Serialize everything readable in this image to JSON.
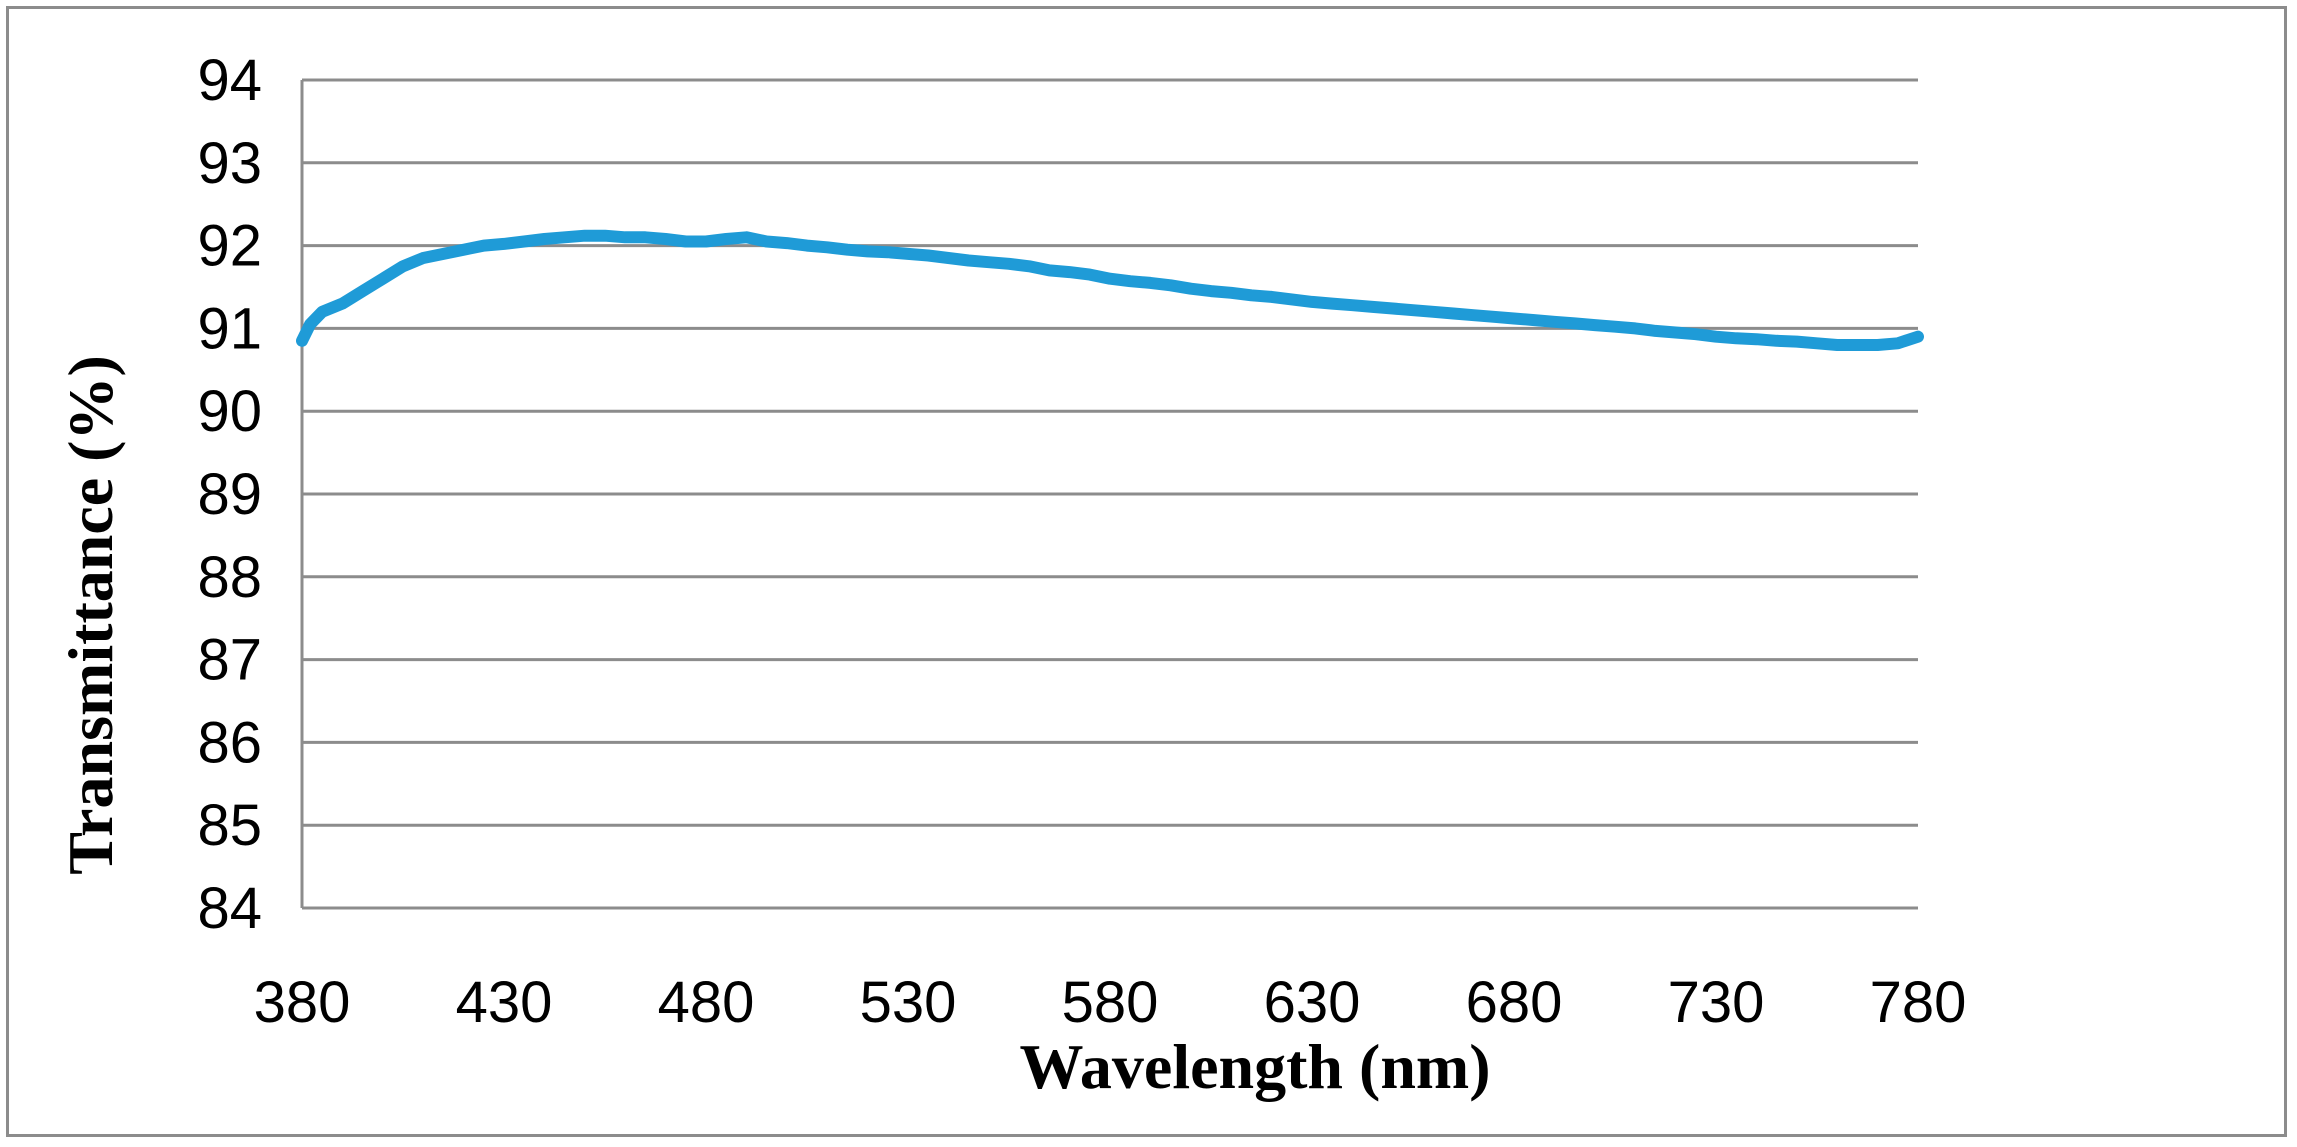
{
  "chart_data": {
    "type": "line",
    "title": "",
    "xlabel": "Wavelength (nm)",
    "ylabel": "Transmittance (%)",
    "xlim": [
      380,
      780
    ],
    "ylim": [
      84,
      94
    ],
    "x_ticks": [
      380,
      430,
      480,
      530,
      580,
      630,
      680,
      730,
      780
    ],
    "y_ticks": [
      84,
      85,
      86,
      87,
      88,
      89,
      90,
      91,
      92,
      93,
      94
    ],
    "grid": true,
    "legend": "none",
    "series": [
      {
        "name": "Transmittance",
        "color": "#1f9bd7",
        "x": [
          380,
          382,
          385,
          390,
          395,
          400,
          405,
          410,
          415,
          420,
          425,
          430,
          435,
          440,
          445,
          450,
          455,
          460,
          465,
          470,
          475,
          480,
          485,
          490,
          495,
          500,
          505,
          510,
          515,
          520,
          525,
          530,
          535,
          540,
          545,
          550,
          555,
          560,
          565,
          570,
          575,
          580,
          585,
          590,
          595,
          600,
          605,
          610,
          615,
          620,
          625,
          630,
          635,
          640,
          645,
          650,
          655,
          660,
          665,
          670,
          675,
          680,
          685,
          690,
          695,
          700,
          705,
          710,
          715,
          720,
          725,
          730,
          735,
          740,
          745,
          750,
          755,
          760,
          765,
          770,
          775,
          780
        ],
        "y": [
          90.85,
          91.05,
          91.2,
          91.3,
          91.45,
          91.6,
          91.75,
          91.85,
          91.9,
          91.95,
          92.0,
          92.02,
          92.05,
          92.08,
          92.1,
          92.12,
          92.12,
          92.1,
          92.1,
          92.08,
          92.05,
          92.05,
          92.08,
          92.1,
          92.05,
          92.03,
          92.0,
          91.98,
          91.95,
          91.93,
          91.92,
          91.9,
          91.88,
          91.85,
          91.82,
          91.8,
          91.78,
          91.75,
          91.7,
          91.68,
          91.65,
          91.6,
          91.57,
          91.55,
          91.52,
          91.48,
          91.45,
          91.43,
          91.4,
          91.38,
          91.35,
          91.32,
          91.3,
          91.28,
          91.26,
          91.24,
          91.22,
          91.2,
          91.18,
          91.16,
          91.14,
          91.12,
          91.1,
          91.08,
          91.06,
          91.04,
          91.02,
          91.0,
          90.97,
          90.95,
          90.93,
          90.9,
          90.88,
          90.87,
          90.85,
          90.84,
          90.82,
          90.8,
          90.8,
          90.8,
          90.82,
          90.9
        ]
      }
    ]
  }
}
